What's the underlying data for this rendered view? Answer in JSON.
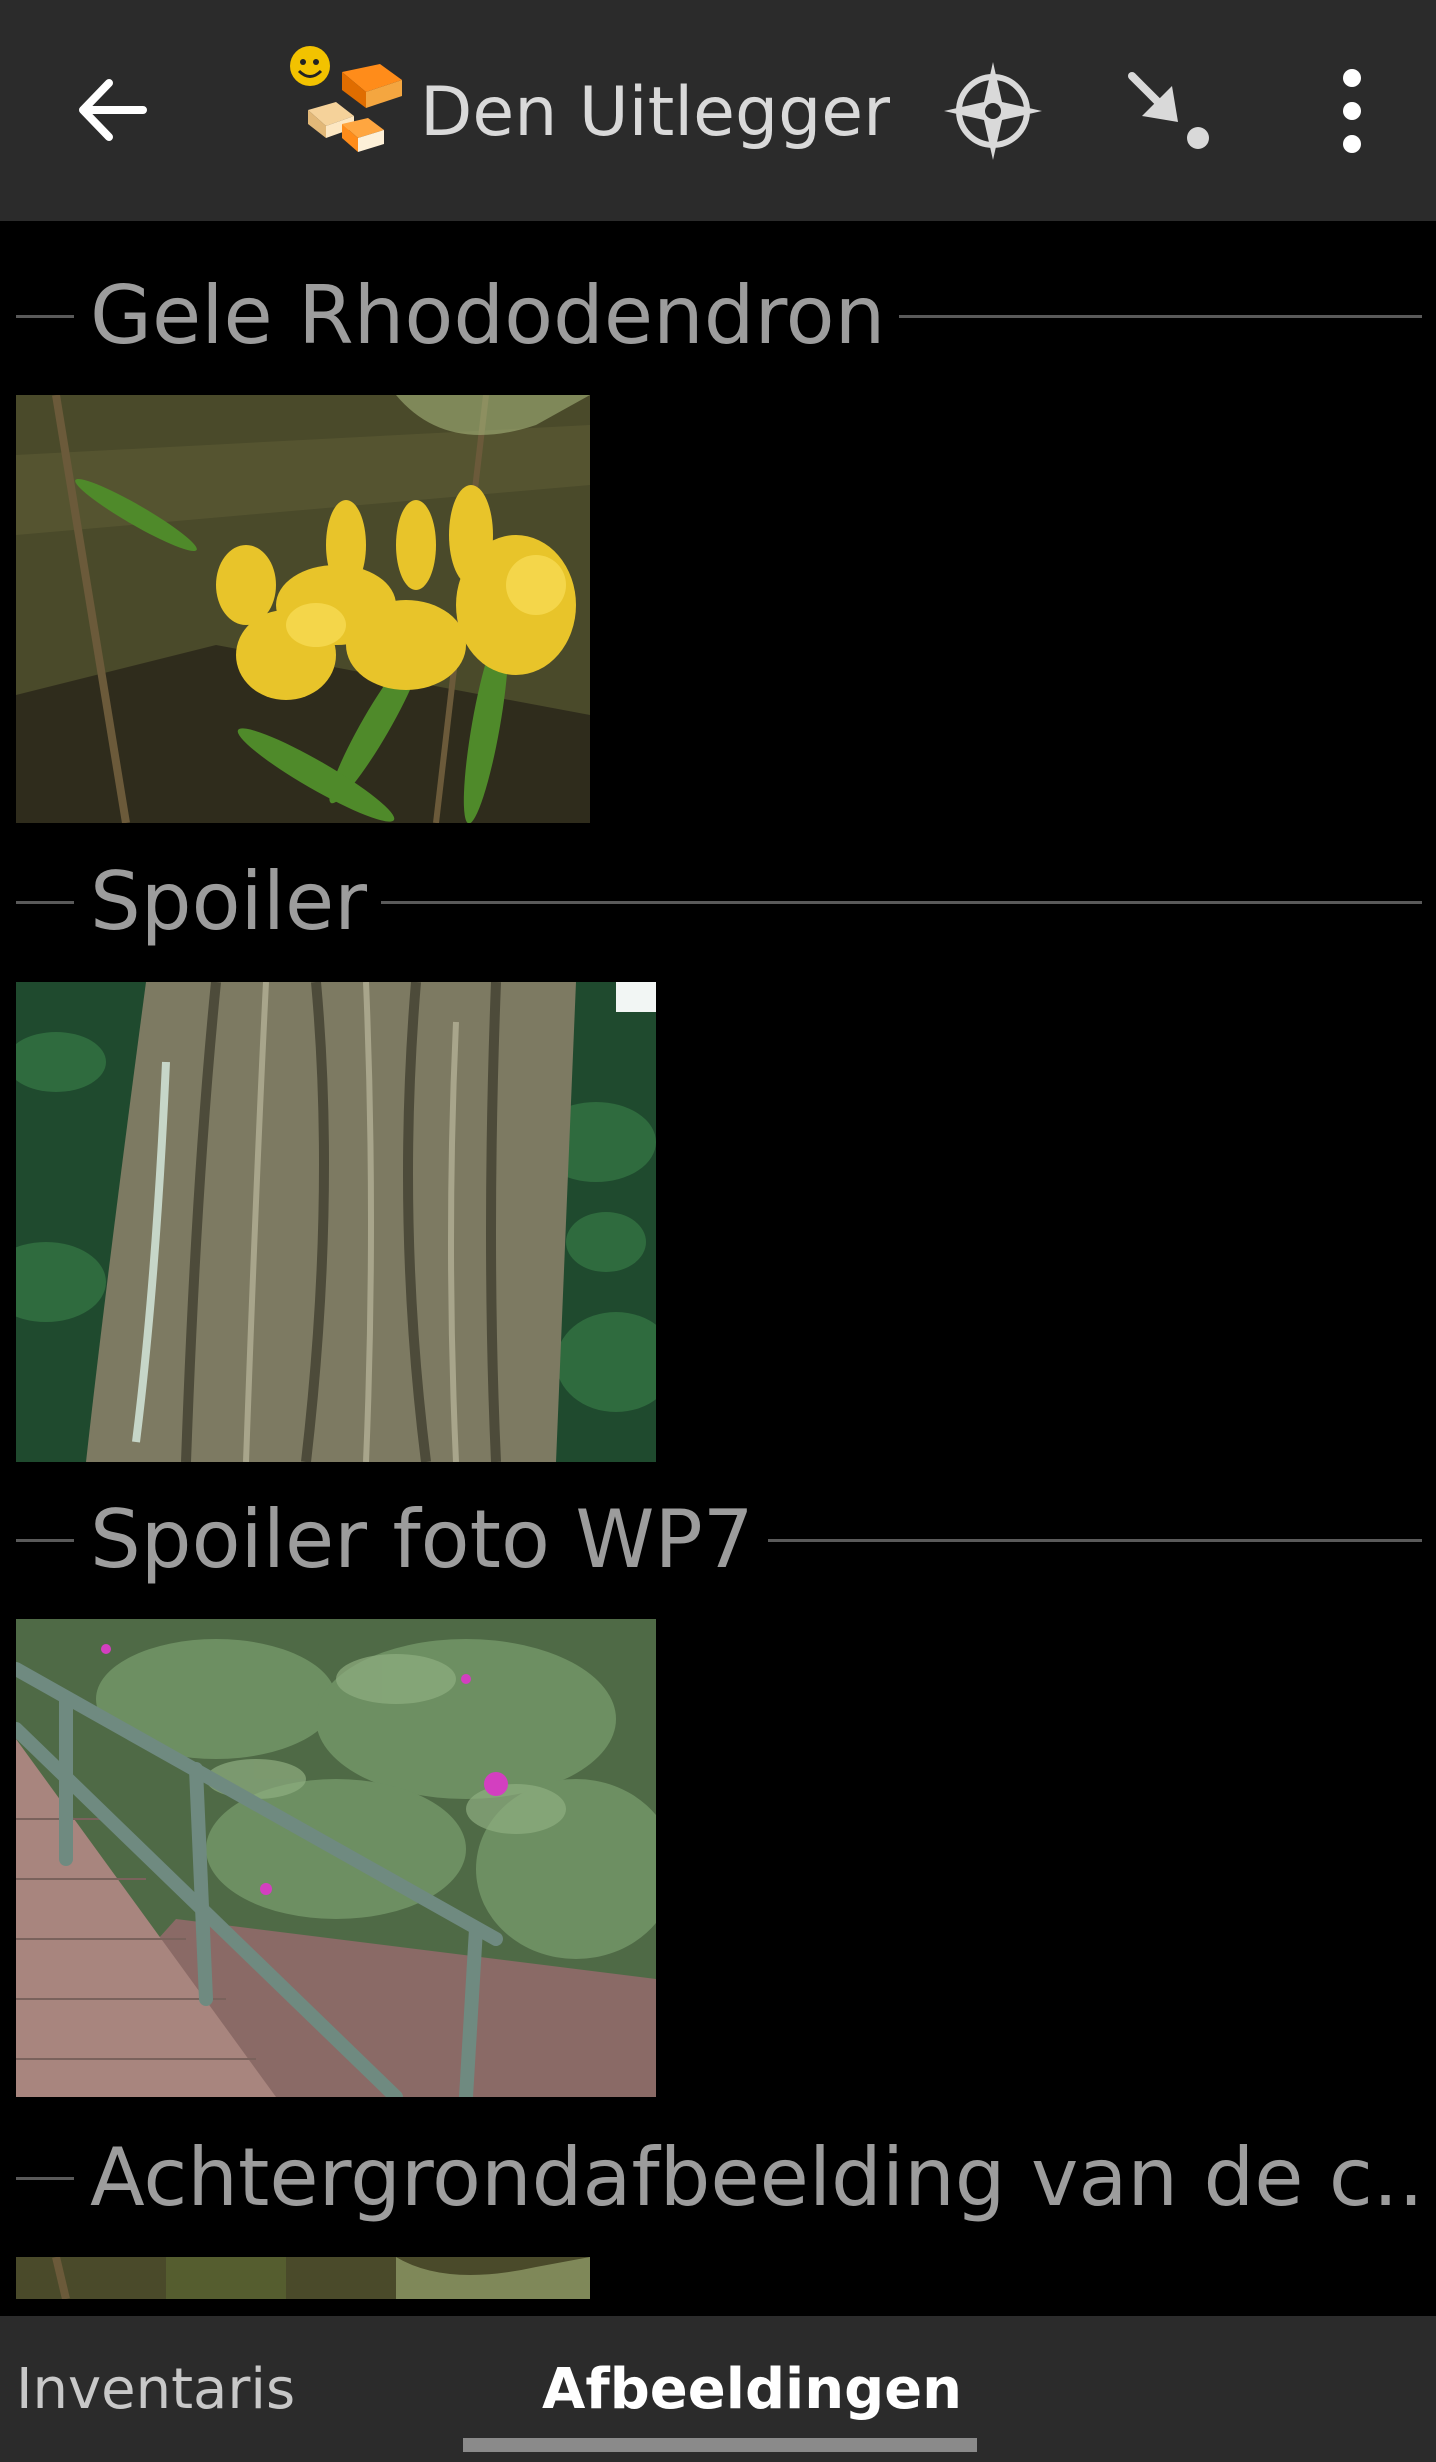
{
  "appbar": {
    "title": "Den Uitlegger...",
    "back_icon": "arrow-left-icon",
    "logo_icon": "cache-smiley-logo-icon",
    "navigate_icon": "compass-navigate-icon",
    "download_icon": "arrow-to-point-icon",
    "menu_icon": "overflow-menu-icon"
  },
  "sections": [
    {
      "title": "Gele Rhododendron",
      "image": "yellow-rhododendron-photo"
    },
    {
      "title": "Spoiler",
      "image": "tree-trunk-photo"
    },
    {
      "title": "Spoiler foto WP7",
      "image": "bridge-railing-shrubs-photo"
    },
    {
      "title": "Achtergrondafbeelding van de c..",
      "image": "background-photo-partial"
    }
  ],
  "tabs": {
    "inventory": "Inventaris",
    "images": "Afbeeldingen",
    "selected": "images"
  },
  "colors": {
    "appbar_bg": "#2b2b2b",
    "page_bg": "#000000",
    "section_text": "#9c9c9c"
  }
}
